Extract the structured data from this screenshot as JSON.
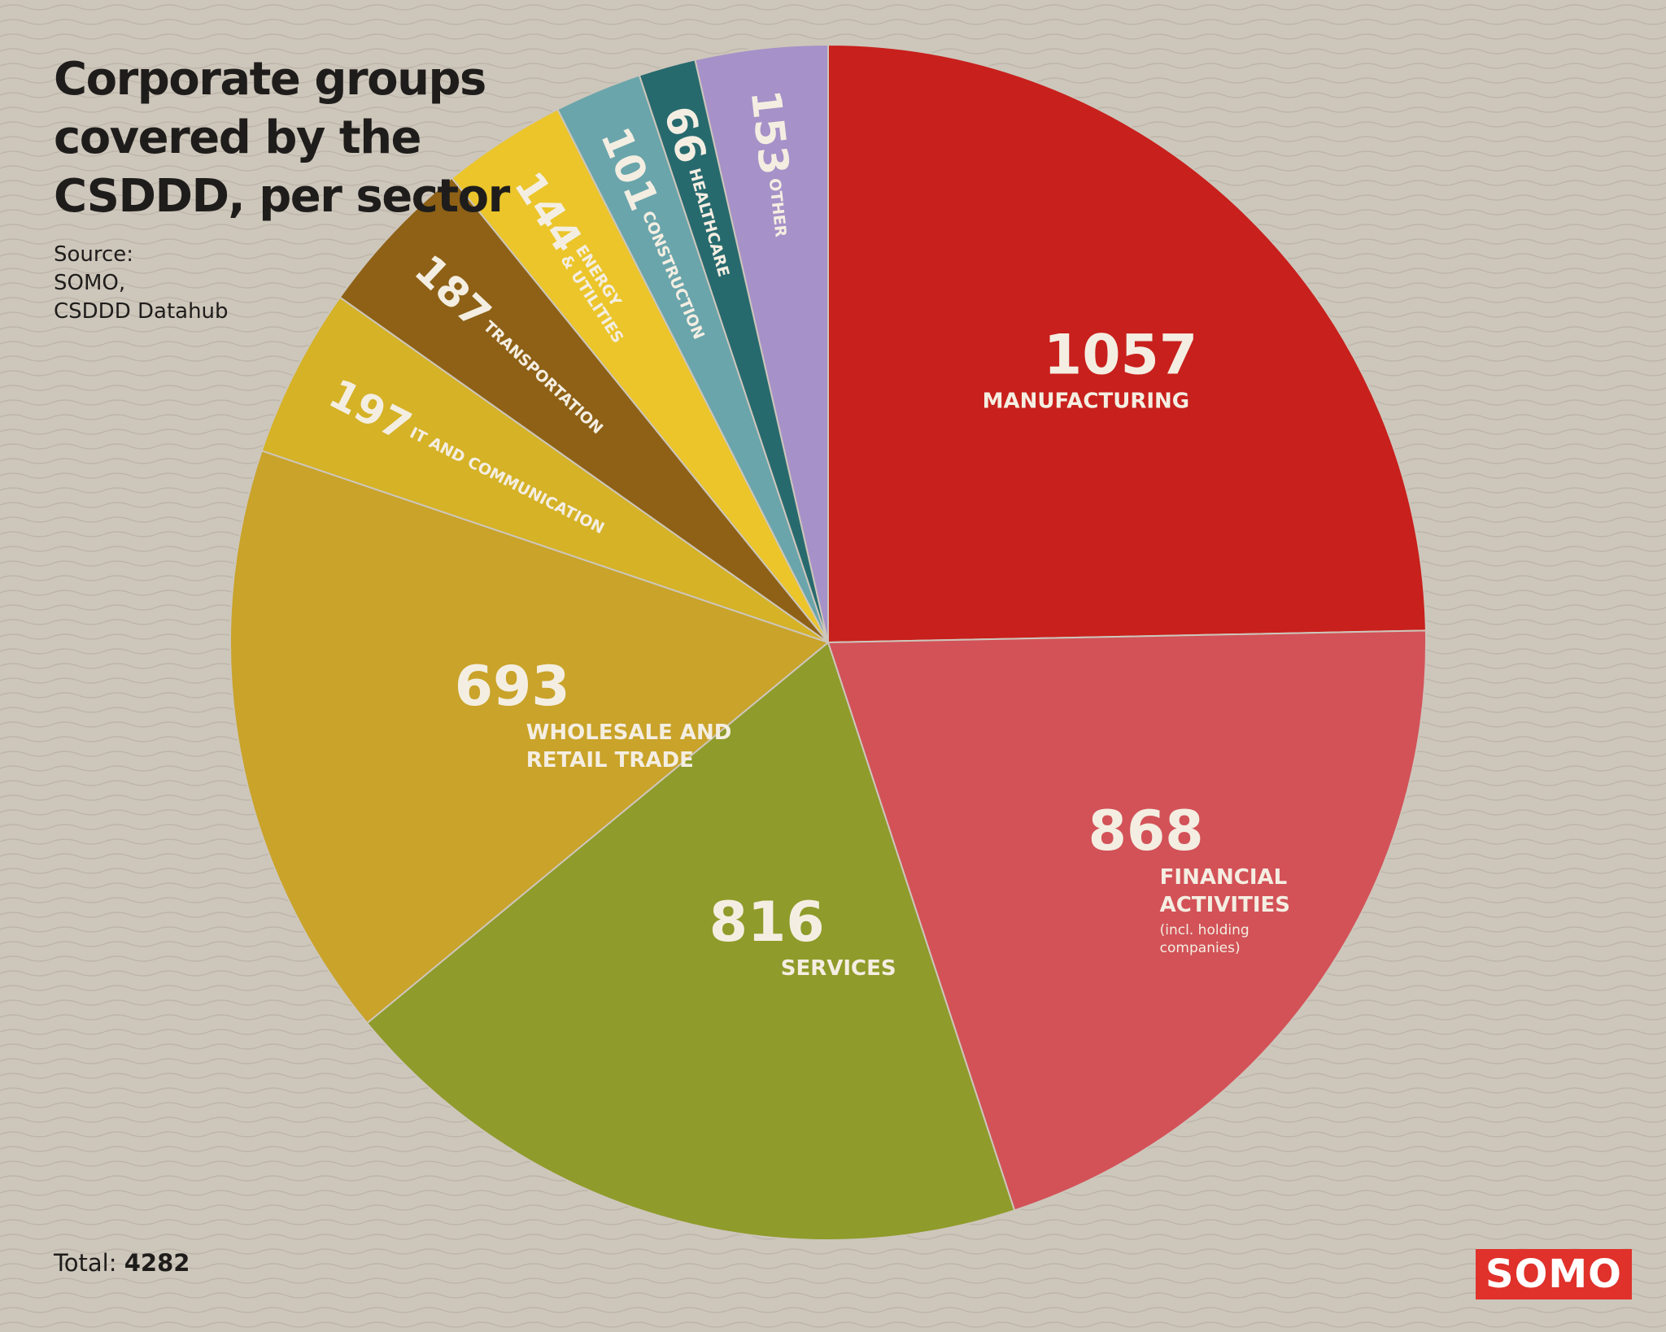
{
  "title": "Corporate groups covered by the CSDDD, per sector",
  "source": "Source:\nSOMO,\nCSDDD Datahub",
  "total_label": "Total:",
  "total_value": "4282",
  "logo": "SOMO",
  "colors": {
    "background": "#cdc6bb",
    "text": "#1f1d1b",
    "brand": "#e0312b"
  },
  "chart_data": {
    "type": "pie",
    "title": "Corporate groups covered by the CSDDD, per sector",
    "total": 4282,
    "slices": [
      {
        "value": 1057,
        "label": "MANUFACTURING",
        "note": "",
        "color": "#c8201c"
      },
      {
        "value": 868,
        "label": "FINANCIAL ACTIVITIES",
        "note": "(incl. holding companies)",
        "color": "#d25258"
      },
      {
        "value": 816,
        "label": "SERVICES",
        "note": "",
        "color": "#8f9b2a"
      },
      {
        "value": 693,
        "label": "WHOLESALE AND RETAIL TRADE",
        "note": "",
        "color": "#c9a32a"
      },
      {
        "value": 197,
        "label": "IT AND COMMUNICATION",
        "note": "",
        "color": "#d5b226"
      },
      {
        "value": 187,
        "label": "TRANSPORTATION",
        "note": "",
        "color": "#8e6116"
      },
      {
        "value": 144,
        "label": "ENERGY & UTILITIES",
        "note": "",
        "color": "#ebc52a"
      },
      {
        "value": 101,
        "label": "CONSTRUCTION",
        "note": "",
        "color": "#6aa5ab"
      },
      {
        "value": 66,
        "label": "HEALTHCARE",
        "note": "",
        "color": "#276a6e"
      },
      {
        "value": 153,
        "label": "OTHER",
        "note": "",
        "color": "#a691c8"
      }
    ]
  }
}
